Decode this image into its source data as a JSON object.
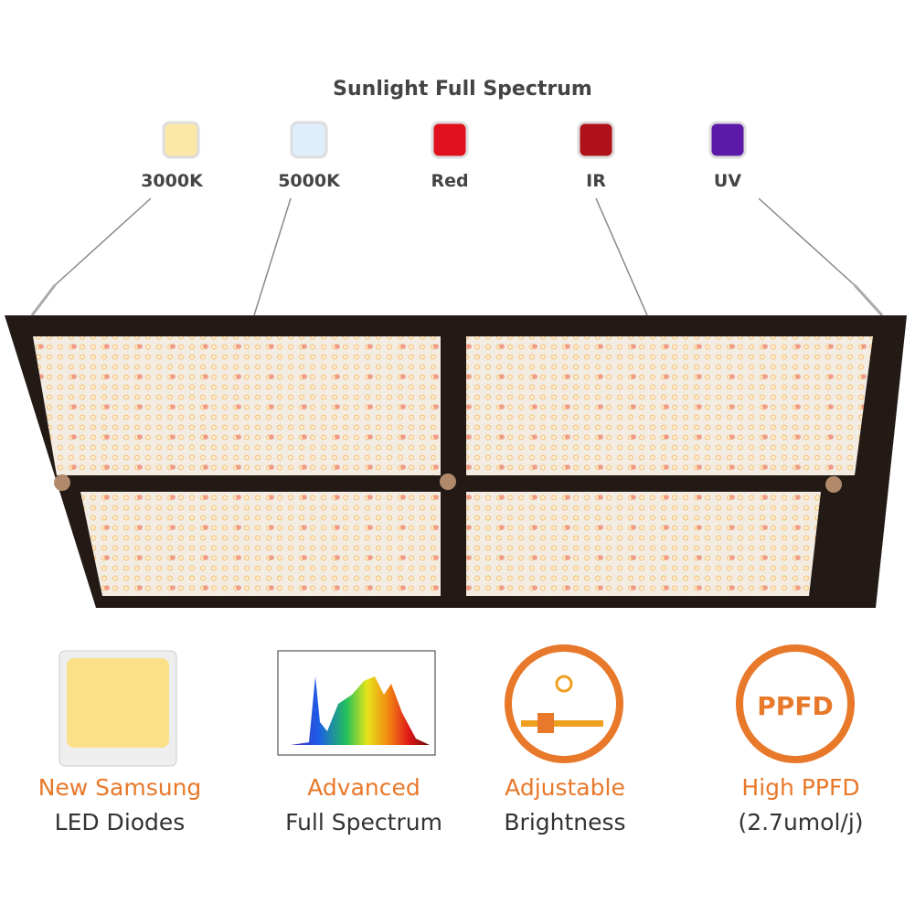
{
  "header": {
    "title": "Sunlight Full Spectrum"
  },
  "diodes": [
    {
      "label": "3000K",
      "color": "#fbe7a6"
    },
    {
      "label": "5000K",
      "color": "#dfeefb"
    },
    {
      "label": "Red",
      "color": "#e0101c"
    },
    {
      "label": "IR",
      "color": "#b0101a"
    },
    {
      "label": "UV",
      "color": "#5b1aa8"
    }
  ],
  "features": [
    {
      "title": "New Samsung",
      "subtitle": "LED Diodes"
    },
    {
      "title": "Advanced",
      "subtitle": "Full Spectrum"
    },
    {
      "title": "Adjustable",
      "subtitle": "Brightness"
    },
    {
      "title": "High PPFD",
      "subtitle": "(2.7umol/j)",
      "icon_text": "PPFD"
    }
  ]
}
